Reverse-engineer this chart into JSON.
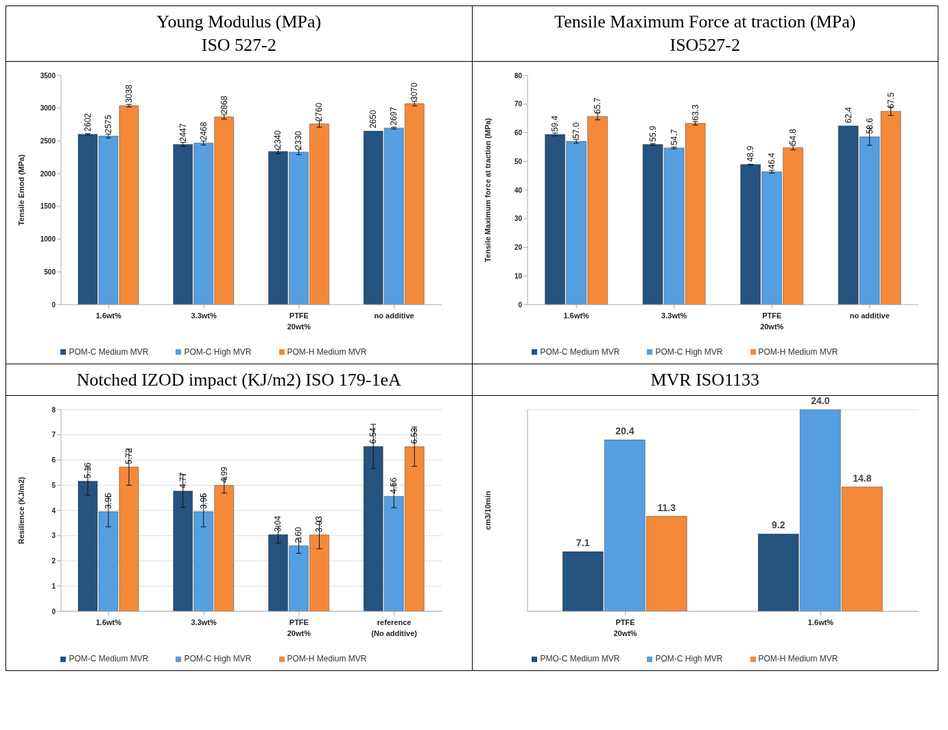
{
  "chart_data": [
    {
      "type": "bar",
      "title": "Young Modulus (MPa)",
      "subtitle": "ISO 527-2",
      "ylabel": "Tensile Emod (MPa)",
      "categories": [
        "1.6wt%",
        "3.3wt%",
        "PTFE\n20wt%",
        "no additive"
      ],
      "series": [
        {
          "name": "POM-C Medium MVR",
          "color": "#25527f",
          "values": [
            2602,
            2447,
            2340,
            2650
          ],
          "errors": [
            10,
            30,
            35,
            null
          ]
        },
        {
          "name": "POM-C High MVR",
          "color": "#559fe0",
          "values": [
            2575,
            2468,
            2330,
            2697
          ],
          "errors": [
            30,
            30,
            40,
            15
          ]
        },
        {
          "name": "POM-H Medium MVR",
          "color": "#f5893a",
          "values": [
            3038,
            2868,
            2760,
            3070
          ],
          "errors": [
            20,
            35,
            50,
            35
          ]
        }
      ],
      "ylim": [
        0,
        3500
      ],
      "yticks": [
        0,
        500,
        1000,
        1500,
        2000,
        2500,
        3000,
        3500
      ],
      "data_labels": true,
      "legend": "bottom"
    },
    {
      "type": "bar",
      "title": "Tensile Maximum Force at traction (MPa)",
      "subtitle": "ISO527-2",
      "ylabel": "Tensile Maximum force at traction (MPa)",
      "categories": [
        "1.6wt%",
        "3.3wt%",
        "PTFE\n20wt%",
        "no additive"
      ],
      "series": [
        {
          "name": "POM-C Medium MVR",
          "color": "#25527f",
          "values": [
            59.4,
            55.9,
            48.9,
            62.4
          ],
          "errors": [
            0.5,
            0.3,
            0.1,
            null
          ],
          "value_labels": [
            "59.4",
            "55.9",
            "48.9",
            "62.4"
          ]
        },
        {
          "name": "POM-C High MVR",
          "color": "#559fe0",
          "values": [
            57.0,
            54.7,
            46.4,
            58.6
          ],
          "errors": [
            0.7,
            0.3,
            0.5,
            3
          ],
          "value_labels": [
            "57.0",
            "54.7",
            "46.4",
            "58.6"
          ]
        },
        {
          "name": "POM-H Medium MVR",
          "color": "#f5893a",
          "values": [
            65.7,
            63.3,
            54.8,
            67.5
          ],
          "errors": [
            1.2,
            0.6,
            0.8,
            1.5
          ],
          "value_labels": [
            "65.7",
            "63.3",
            "54.8",
            "67.5"
          ]
        }
      ],
      "ylim": [
        0,
        80
      ],
      "yticks": [
        0,
        10,
        20,
        30,
        40,
        50,
        60,
        70,
        80
      ],
      "legend": "bottom"
    },
    {
      "type": "bar",
      "title": "Notched IZOD impact (KJ/m2) ISO 179-1eA",
      "ylabel": "Resilience (KJ/m2)",
      "categories": [
        "1.6wt%",
        "3.3wt%",
        "PTFE\n20wt%",
        "reference\n(No additive)"
      ],
      "series": [
        {
          "name": "POM-C Medium MVR",
          "color": "#25527f",
          "values": [
            5.16,
            4.77,
            3.04,
            6.54
          ],
          "errors": [
            0.55,
            0.65,
            0.33,
            0.88
          ],
          "value_labels": [
            "5.16",
            "4.77",
            "3.04",
            "6.54"
          ]
        },
        {
          "name": "POM-C High MVR",
          "color": "#559fe0",
          "values": [
            3.95,
            3.95,
            2.6,
            4.56
          ],
          "errors": [
            0.6,
            0.6,
            0.3,
            0.45
          ],
          "value_labels": [
            "3.95",
            "3.95",
            "2.60",
            "4.56"
          ]
        },
        {
          "name": "POM-H Medium MVR",
          "color": "#f5893a",
          "values": [
            5.72,
            4.99,
            3.03,
            6.53
          ],
          "errors": [
            0.72,
            0.3,
            0.55,
            0.78
          ],
          "value_labels": [
            "5.72",
            "4.99",
            "3.03",
            "6.53"
          ]
        }
      ],
      "ylim": [
        0,
        8
      ],
      "yticks": [
        0,
        1,
        2,
        3,
        4,
        5,
        6,
        7,
        8
      ],
      "grid": "y",
      "legend": "bottom"
    },
    {
      "type": "bar",
      "title": "MVR ISO1133",
      "ylabel": "cm3/10min",
      "categories": [
        "PTFE\n20wt%",
        "1.6wt%"
      ],
      "series": [
        {
          "name": "PMO-C Medium MVR",
          "color": "#25527f",
          "values": [
            7.1,
            9.2
          ],
          "value_labels": [
            "7.1",
            "9.2"
          ]
        },
        {
          "name": "POM-C High MVR",
          "color": "#559fe0",
          "values": [
            20.4,
            24.0
          ],
          "value_labels": [
            "20.4",
            "24.0"
          ]
        },
        {
          "name": "POM-H Medium MVR",
          "color": "#f5893a",
          "values": [
            11.3,
            14.8
          ],
          "value_labels": [
            "11.3",
            "14.8"
          ]
        }
      ],
      "grid": "y",
      "tick_labels": "x",
      "legend": "bottom"
    }
  ]
}
